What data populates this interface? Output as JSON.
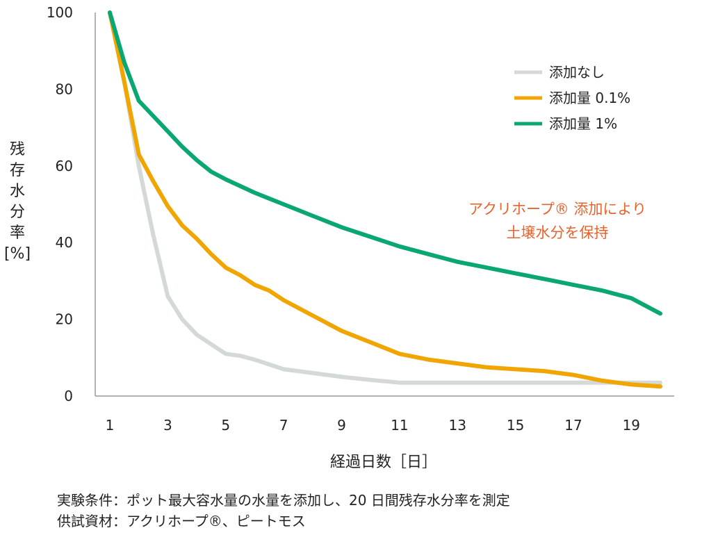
{
  "chart_data": {
    "type": "line",
    "title": "",
    "xlabel": "経過日数［日］",
    "ylabel": [
      "残",
      "存",
      "水",
      "分",
      "率",
      "[%]"
    ],
    "xlim": [
      1,
      20
    ],
    "ylim": [
      0,
      100
    ],
    "xticks": [
      1,
      3,
      5,
      7,
      9,
      11,
      13,
      15,
      17,
      19
    ],
    "yticks": [
      0,
      20,
      40,
      60,
      80,
      100
    ],
    "grid": false,
    "legend_position": "top-right",
    "series": [
      {
        "name": "添加なし",
        "color": "#d4d9d6",
        "x": [
          1,
          1.5,
          2,
          2.5,
          3,
          3.5,
          4,
          4.5,
          5,
          5.5,
          6,
          7,
          8,
          9,
          10,
          11,
          12,
          13,
          14,
          15,
          16,
          17,
          18,
          19,
          20
        ],
        "y": [
          100,
          82,
          60,
          42,
          26,
          20,
          16,
          13.5,
          11,
          10.5,
          9.5,
          7,
          6,
          5,
          4.2,
          3.5,
          3.5,
          3.5,
          3.5,
          3.5,
          3.5,
          3.5,
          3.5,
          3.5,
          3.5
        ]
      },
      {
        "name": "添加量 0.1%",
        "color": "#f0a500",
        "x": [
          1,
          1.5,
          2,
          2.5,
          3,
          3.5,
          4,
          4.5,
          5,
          5.5,
          6,
          6.5,
          7,
          8,
          9,
          10,
          11,
          12,
          13,
          14,
          15,
          16,
          17,
          18,
          19,
          20
        ],
        "y": [
          100,
          82,
          63,
          56,
          49.5,
          44.5,
          41,
          37,
          33.5,
          31.5,
          29,
          27.5,
          25,
          21,
          17,
          14,
          11,
          9.5,
          8.5,
          7.5,
          7,
          6.5,
          5.5,
          4,
          3,
          2.5
        ]
      },
      {
        "name": "添加量 1%",
        "color": "#0aa673",
        "x": [
          1,
          1.5,
          2,
          2.5,
          3,
          3.5,
          4,
          4.5,
          5,
          6,
          7,
          8,
          9,
          10,
          11,
          12,
          13,
          14,
          15,
          16,
          17,
          18,
          19,
          20
        ],
        "y": [
          100,
          87,
          77,
          73,
          69,
          65,
          61.5,
          58.5,
          56.5,
          53,
          50,
          47,
          44,
          41.5,
          39,
          37,
          35,
          33.5,
          32,
          30.5,
          29,
          27.5,
          25.5,
          21.5
        ]
      }
    ],
    "annotation": {
      "lines": [
        "アクリホープ® 添加により",
        "土壌水分を保持"
      ],
      "color": "#e8622c"
    }
  },
  "footnotes": [
    "実験条件：ポット最大容水量の水量を添加し、20 日間残存水分率を測定",
    "供試資材：アクリホープ®、ピートモス"
  ]
}
